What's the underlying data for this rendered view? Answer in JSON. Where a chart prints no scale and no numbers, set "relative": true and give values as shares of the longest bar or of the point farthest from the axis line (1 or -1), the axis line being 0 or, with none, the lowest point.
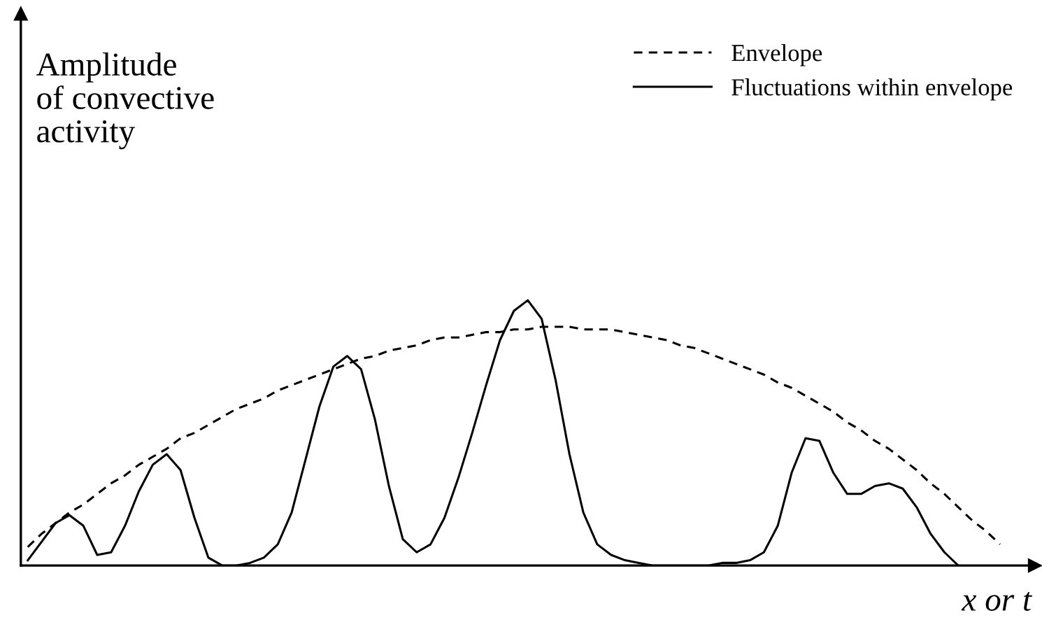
{
  "chart_data": {
    "type": "line",
    "relative": true,
    "categories": [
      null,
      null,
      null,
      null,
      null,
      null,
      null,
      null,
      null,
      null,
      null,
      null,
      null,
      null,
      null,
      null,
      null,
      null,
      null,
      null,
      null,
      null,
      null,
      null,
      null,
      null,
      null,
      null,
      null,
      null,
      null,
      null,
      null,
      null,
      null,
      null,
      null,
      null,
      null,
      null,
      null,
      null,
      null,
      null,
      null,
      null,
      null,
      null,
      null,
      null,
      null,
      null,
      null,
      null,
      null,
      null,
      null,
      null,
      null,
      null,
      null,
      null,
      null,
      null,
      null,
      null,
      null,
      null,
      null,
      null,
      null
    ],
    "ylabel": "Amplitude\nof convective\nactivity",
    "xlabel": "x or t",
    "legend": "top right",
    "grid": false,
    "marker": "none",
    "series": [
      {
        "name": "Envelope",
        "color": "#000000",
        "line_style": "dashed",
        "values": [
          0.07,
          0.12,
          0.16,
          0.2,
          0.23,
          0.27,
          0.31,
          0.34,
          0.38,
          0.41,
          0.44,
          0.48,
          0.5,
          0.53,
          0.56,
          0.59,
          0.61,
          0.63,
          0.66,
          0.68,
          0.7,
          0.72,
          0.74,
          0.76,
          0.78,
          0.79,
          0.81,
          0.82,
          0.83,
          0.85,
          0.86,
          0.86,
          0.87,
          0.88,
          0.88,
          0.89,
          0.89,
          0.9,
          0.9,
          0.9,
          0.89,
          0.89,
          0.89,
          0.88,
          0.87,
          0.86,
          0.85,
          0.83,
          0.82,
          0.8,
          0.78,
          0.76,
          0.74,
          0.72,
          0.69,
          0.67,
          0.64,
          0.61,
          0.58,
          0.54,
          0.51,
          0.47,
          0.44,
          0.4,
          0.36,
          0.31,
          0.27,
          0.22,
          0.17,
          0.13,
          0.08
        ]
      },
      {
        "name": "Fluctuations within envelope",
        "color": "#000000",
        "line_style": "solid",
        "values": [
          0.02,
          0.09,
          0.16,
          0.19,
          0.15,
          0.04,
          0.05,
          0.15,
          0.28,
          0.38,
          0.42,
          0.36,
          0.18,
          0.03,
          0.0,
          0.0,
          0.01,
          0.03,
          0.08,
          0.2,
          0.4,
          0.6,
          0.75,
          0.79,
          0.74,
          0.55,
          0.3,
          0.1,
          0.05,
          0.08,
          0.18,
          0.33,
          0.5,
          0.68,
          0.85,
          0.96,
          1.0,
          0.93,
          0.7,
          0.42,
          0.2,
          0.08,
          0.04,
          0.02,
          0.01,
          0.0,
          0.0,
          0.0,
          0.0,
          0.0,
          0.01,
          0.01,
          0.02,
          0.05,
          0.15,
          0.35,
          0.48,
          0.47,
          0.35,
          0.27,
          0.27,
          0.3,
          0.31,
          0.29,
          0.22,
          0.12,
          0.05,
          0.0,
          null,
          null,
          null
        ]
      }
    ]
  }
}
